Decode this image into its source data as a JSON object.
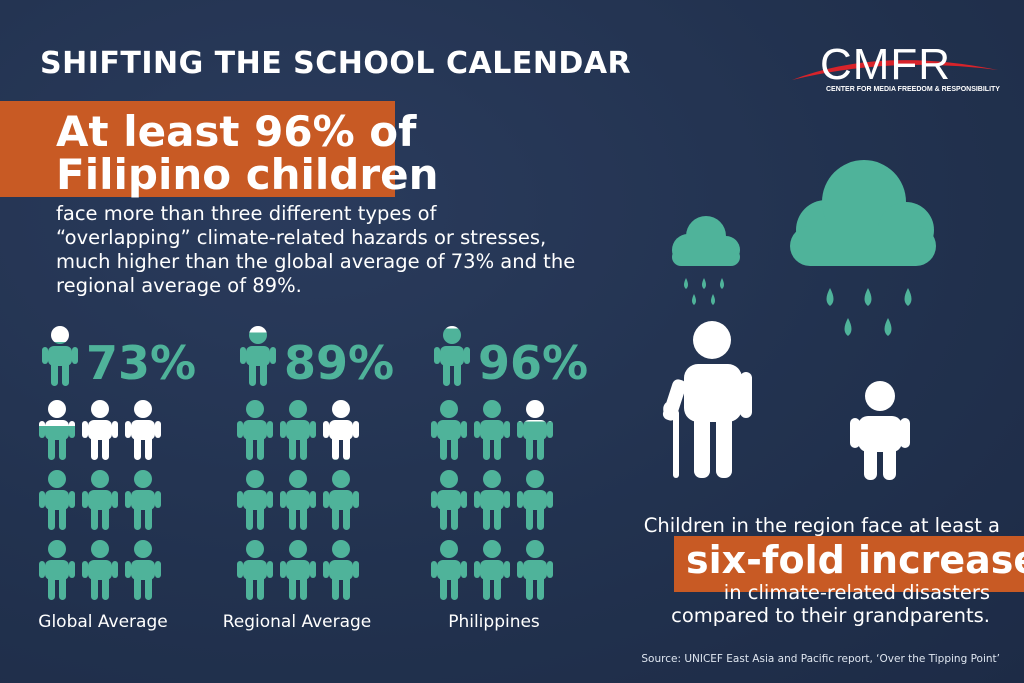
{
  "title": "SHIFTING THE SCHOOL CALENDAR",
  "logo": {
    "name": "CMFR",
    "subtitle": "CENTER FOR MEDIA FREEDOM & RESPONSIBILITY"
  },
  "headline": {
    "line1": "At least 96% of",
    "line2": "Filipino children"
  },
  "description": "face more than three different types of “overlapping” climate-related hazards or stresses, much higher than the global average of 73% and the regional average of 89%.",
  "groups": [
    {
      "label": "Global Average",
      "percent_text": "73%",
      "percent": 73
    },
    {
      "label": "Regional Average",
      "percent_text": "89%",
      "percent": 89
    },
    {
      "label": "Philippines",
      "percent_text": "96%",
      "percent": 96
    }
  ],
  "fact": {
    "line1": "Children in the region face at least a",
    "highlight": "six-fold increase",
    "line2": "in climate-related disasters",
    "line3": "compared to their grandparents."
  },
  "source": "Source: UNICEF East Asia and Pacific report, ‘Over the Tipping Point’",
  "colors": {
    "background": "#22324f",
    "accent_orange": "#c85a24",
    "teal": "#4fb39a",
    "white": "#ffffff"
  },
  "icons": [
    "child-icon",
    "elderly-person-icon",
    "rain-cloud-icon"
  ]
}
